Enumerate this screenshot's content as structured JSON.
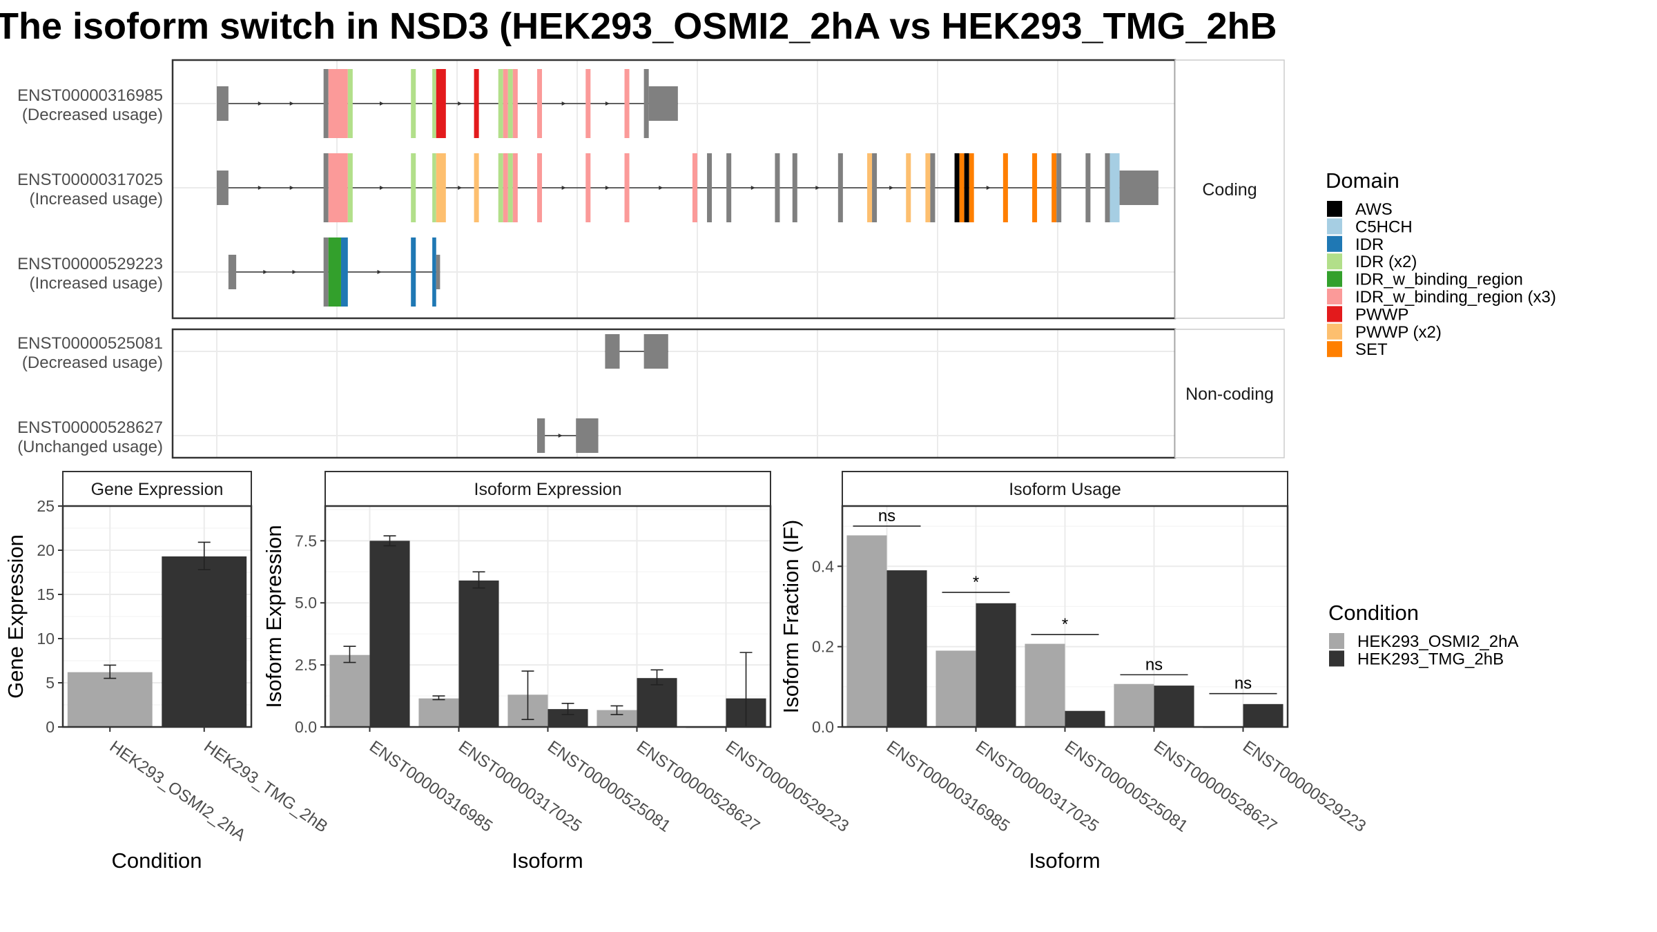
{
  "title": "The isoform switch in NSD3 (HEK293_OSMI2_2hA vs HEK293_TMG_2hB",
  "colors": {
    "osmi": "#a8a8a8",
    "tmg": "#333333",
    "exon": "#808080",
    "panel_border": "#333333",
    "grid": "#ebebeb",
    "strip_fill": "#ffffff"
  },
  "domain_legend": {
    "title": "Domain",
    "items": [
      {
        "label": "AWS",
        "color": "#000000"
      },
      {
        "label": "C5HCH",
        "color": "#a6cee3"
      },
      {
        "label": "IDR",
        "color": "#1f78b4"
      },
      {
        "label": "IDR (x2)",
        "color": "#b2df8a"
      },
      {
        "label": "IDR_w_binding_region",
        "color": "#33a02c"
      },
      {
        "label": "IDR_w_binding_region (x3)",
        "color": "#fb9a99"
      },
      {
        "label": "PWWP",
        "color": "#e31a1c"
      },
      {
        "label": "PWWP (x2)",
        "color": "#fdbf6f"
      },
      {
        "label": "SET",
        "color": "#ff7f00"
      }
    ]
  },
  "condition_legend": {
    "title": "Condition",
    "items": [
      {
        "label": "HEK293_OSMI2_2hA",
        "color": "#a8a8a8"
      },
      {
        "label": "HEK293_TMG_2hB",
        "color": "#333333"
      }
    ]
  },
  "structure": {
    "coding_label": "Coding",
    "noncoding_label": "Non-coding",
    "coding_transcripts": [
      {
        "id": "ENST00000316985",
        "usage": "(Decreased usage)",
        "exons": [
          [
            0.0,
            0.012,
            "u"
          ],
          [
            0.11,
            0.115,
            "u"
          ],
          [
            0.115,
            0.135,
            "IDR_w_binding_region (x3)"
          ],
          [
            0.135,
            0.14,
            "IDR (x2)"
          ],
          [
            0.2,
            0.205,
            "IDR (x2)"
          ],
          [
            0.222,
            0.226,
            "IDR (x2)"
          ],
          [
            0.226,
            0.236,
            "PWWP"
          ],
          [
            0.265,
            0.27,
            "PWWP"
          ],
          [
            0.29,
            0.295,
            "IDR (x2)"
          ],
          [
            0.295,
            0.3,
            "IDR_w_binding_region (x3)"
          ],
          [
            0.3,
            0.305,
            "IDR (x2)"
          ],
          [
            0.305,
            0.31,
            "IDR_w_binding_region (x3)"
          ],
          [
            0.33,
            0.335,
            "IDR_w_binding_region (x3)"
          ],
          [
            0.38,
            0.385,
            "IDR_w_binding_region (x3)"
          ],
          [
            0.42,
            0.425,
            "IDR_w_binding_region (x3)"
          ],
          [
            0.44,
            0.445,
            "u"
          ],
          [
            0.445,
            0.475,
            "u"
          ]
        ]
      },
      {
        "id": "ENST00000317025",
        "usage": "(Increased usage)",
        "exons": [
          [
            0.0,
            0.012,
            "u"
          ],
          [
            0.11,
            0.115,
            "u"
          ],
          [
            0.115,
            0.135,
            "IDR_w_binding_region (x3)"
          ],
          [
            0.135,
            0.14,
            "IDR (x2)"
          ],
          [
            0.2,
            0.205,
            "IDR (x2)"
          ],
          [
            0.222,
            0.226,
            "IDR (x2)"
          ],
          [
            0.226,
            0.236,
            "PWWP (x2)"
          ],
          [
            0.265,
            0.27,
            "PWWP (x2)"
          ],
          [
            0.29,
            0.295,
            "IDR (x2)"
          ],
          [
            0.295,
            0.3,
            "IDR_w_binding_region (x3)"
          ],
          [
            0.3,
            0.305,
            "IDR (x2)"
          ],
          [
            0.305,
            0.31,
            "IDR_w_binding_region (x3)"
          ],
          [
            0.33,
            0.335,
            "IDR_w_binding_region (x3)"
          ],
          [
            0.38,
            0.385,
            "IDR_w_binding_region (x3)"
          ],
          [
            0.42,
            0.425,
            "IDR_w_binding_region (x3)"
          ],
          [
            0.49,
            0.495,
            "IDR_w_binding_region (x3)"
          ],
          [
            0.505,
            0.51,
            "u"
          ],
          [
            0.525,
            0.53,
            "u"
          ],
          [
            0.575,
            0.58,
            "u"
          ],
          [
            0.593,
            0.598,
            "u"
          ],
          [
            0.64,
            0.645,
            "u"
          ],
          [
            0.67,
            0.675,
            "PWWP (x2)"
          ],
          [
            0.675,
            0.68,
            "u"
          ],
          [
            0.71,
            0.715,
            "PWWP (x2)"
          ],
          [
            0.73,
            0.735,
            "PWWP (x2)"
          ],
          [
            0.735,
            0.74,
            "u"
          ],
          [
            0.76,
            0.765,
            "AWS"
          ],
          [
            0.765,
            0.77,
            "SET"
          ],
          [
            0.77,
            0.775,
            "AWS"
          ],
          [
            0.775,
            0.78,
            "SET"
          ],
          [
            0.81,
            0.815,
            "SET"
          ],
          [
            0.84,
            0.845,
            "SET"
          ],
          [
            0.86,
            0.865,
            "SET"
          ],
          [
            0.865,
            0.87,
            "u"
          ],
          [
            0.895,
            0.9,
            "u"
          ],
          [
            0.915,
            0.92,
            "u"
          ],
          [
            0.92,
            0.93,
            "C5HCH"
          ],
          [
            0.93,
            0.97,
            "u"
          ]
        ]
      },
      {
        "id": "ENST00000529223",
        "usage": "(Increased usage)",
        "exons": [
          [
            0.012,
            0.02,
            "u"
          ],
          [
            0.11,
            0.115,
            "u"
          ],
          [
            0.115,
            0.128,
            "IDR_w_binding_region"
          ],
          [
            0.128,
            0.135,
            "IDR"
          ],
          [
            0.2,
            0.205,
            "IDR"
          ],
          [
            0.222,
            0.226,
            "IDR"
          ],
          [
            0.226,
            0.23,
            "u"
          ]
        ]
      }
    ],
    "noncoding_transcripts": [
      {
        "id": "ENST00000525081",
        "usage": "(Decreased usage)",
        "exons": [
          [
            0.4,
            0.415
          ],
          [
            0.44,
            0.465
          ]
        ]
      },
      {
        "id": "ENST00000528627",
        "usage": "(Unchanged usage)",
        "exons": [
          [
            0.33,
            0.338
          ],
          [
            0.37,
            0.393
          ]
        ]
      }
    ]
  },
  "chart_data": [
    {
      "type": "bar",
      "strip": "Gene Expression",
      "xlabel": "Condition",
      "ylabel": "Gene Expression",
      "ylim": [
        0,
        25
      ],
      "yticks": [
        "0",
        "5",
        "10",
        "15",
        "20",
        "25"
      ],
      "categories": [
        "HEK293_OSMI2_2hA",
        "HEK293_TMG_2hB"
      ],
      "values": [
        6.2,
        19.3
      ],
      "errors": [
        [
          5.5,
          7.0
        ],
        [
          17.8,
          20.9
        ]
      ]
    },
    {
      "type": "bar",
      "strip": "Isoform Expression",
      "xlabel": "Isoform",
      "ylabel": "Isoform Expression",
      "ylim": [
        0,
        8.9
      ],
      "yticks": [
        "0.0",
        "2.5",
        "5.0",
        "7.5"
      ],
      "categories": [
        "ENST00000316985",
        "ENST00000317025",
        "ENST00000525081",
        "ENST00000528627",
        "ENST00000529223"
      ],
      "series": [
        {
          "name": "HEK293_OSMI2_2hA",
          "values": [
            2.9,
            1.15,
            1.3,
            0.68,
            0.0
          ],
          "errors": [
            [
              2.6,
              3.25
            ],
            [
              1.1,
              1.25
            ],
            [
              0.3,
              2.25
            ],
            [
              0.5,
              0.85
            ],
            [
              0.0,
              0.0
            ]
          ]
        },
        {
          "name": "HEK293_TMG_2hB",
          "values": [
            7.5,
            5.9,
            0.72,
            1.97,
            1.15
          ],
          "errors": [
            [
              7.3,
              7.7
            ],
            [
              5.6,
              6.25
            ],
            [
              0.5,
              0.95
            ],
            [
              1.7,
              2.3
            ],
            [
              0.0,
              3.0
            ]
          ]
        }
      ]
    },
    {
      "type": "bar",
      "strip": "Isoform Usage",
      "xlabel": "Isoform",
      "ylabel": "Isoform Fraction (IF)",
      "ylim": [
        0,
        0.55
      ],
      "yticks": [
        "0.0",
        "0.2",
        "0.4"
      ],
      "categories": [
        "ENST00000316985",
        "ENST00000317025",
        "ENST00000525081",
        "ENST00000528627",
        "ENST00000529223"
      ],
      "series": [
        {
          "name": "HEK293_OSMI2_2hA",
          "values": [
            0.477,
            0.19,
            0.207,
            0.107,
            0.0
          ]
        },
        {
          "name": "HEK293_TMG_2hB",
          "values": [
            0.39,
            0.308,
            0.04,
            0.103,
            0.057
          ]
        }
      ],
      "significance": [
        {
          "label": "ns",
          "y": 0.5
        },
        {
          "label": "*",
          "y": 0.335
        },
        {
          "label": "*",
          "y": 0.23
        },
        {
          "label": "ns",
          "y": 0.13
        },
        {
          "label": "ns",
          "y": 0.083
        }
      ]
    }
  ]
}
